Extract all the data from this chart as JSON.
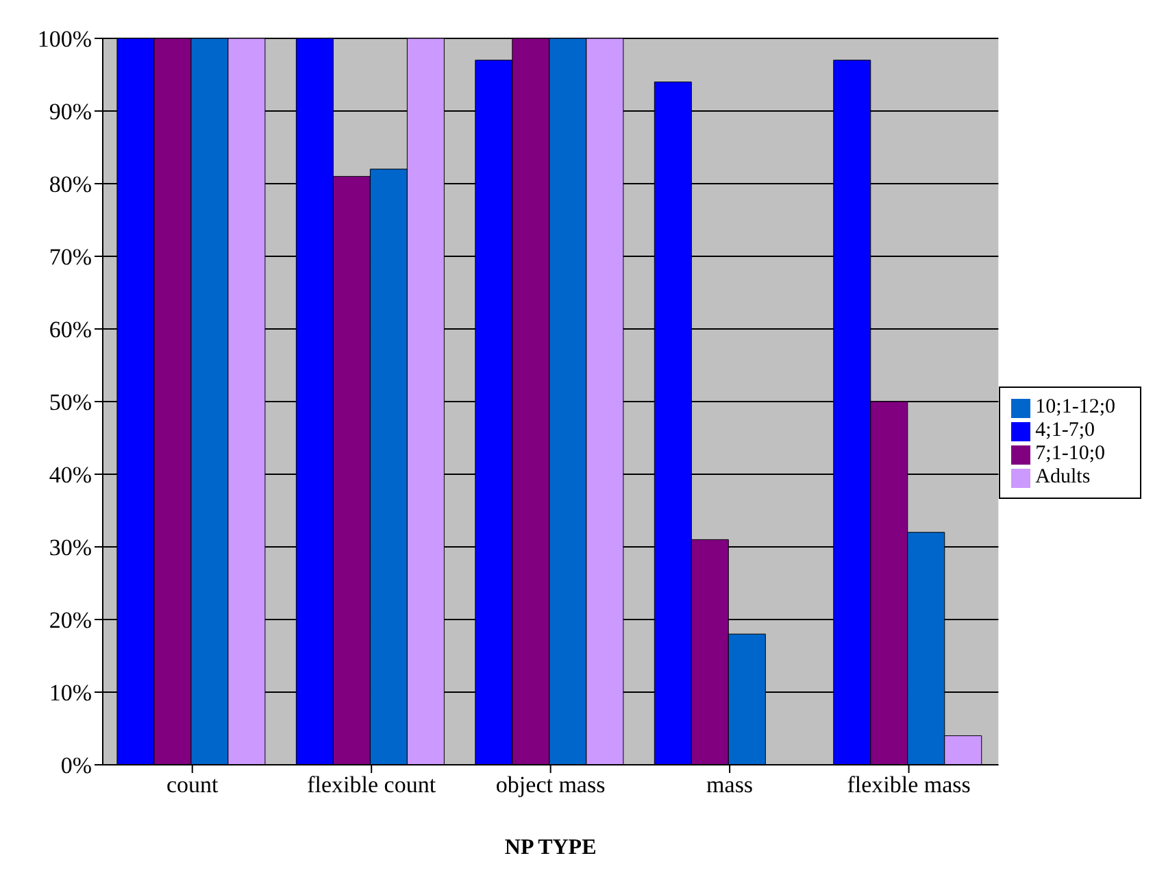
{
  "chart_data": {
    "type": "bar",
    "xlabel": "NP TYPE",
    "categories": [
      "count",
      "flexible count",
      "object mass",
      "mass",
      "flexible mass"
    ],
    "series": [
      {
        "name": "4;1-7;0",
        "color": "#0000ff",
        "values": [
          100,
          100,
          97,
          94,
          97
        ]
      },
      {
        "name": "7;1-10;0",
        "color": "#800080",
        "values": [
          100,
          81,
          100,
          31,
          50
        ]
      },
      {
        "name": "10;1-12;0",
        "color": "#0066cc",
        "values": [
          100,
          82,
          100,
          18,
          32
        ]
      },
      {
        "name": "Adults",
        "color": "#cc99ff",
        "values": [
          100,
          100,
          100,
          0,
          4
        ]
      }
    ],
    "ylim": [
      0,
      100
    ],
    "yticks": [
      {
        "value": 0,
        "label": "0%"
      },
      {
        "value": 10,
        "label": "10%"
      },
      {
        "value": 20,
        "label": "20%"
      },
      {
        "value": 30,
        "label": "30%"
      },
      {
        "value": 40,
        "label": "40%"
      },
      {
        "value": 50,
        "label": "50%"
      },
      {
        "value": 60,
        "label": "60%"
      },
      {
        "value": 70,
        "label": "70%"
      },
      {
        "value": 80,
        "label": "80%"
      },
      {
        "value": 90,
        "label": "90%"
      },
      {
        "value": 100,
        "label": "100%"
      }
    ],
    "grid": "y",
    "legend": "right"
  }
}
